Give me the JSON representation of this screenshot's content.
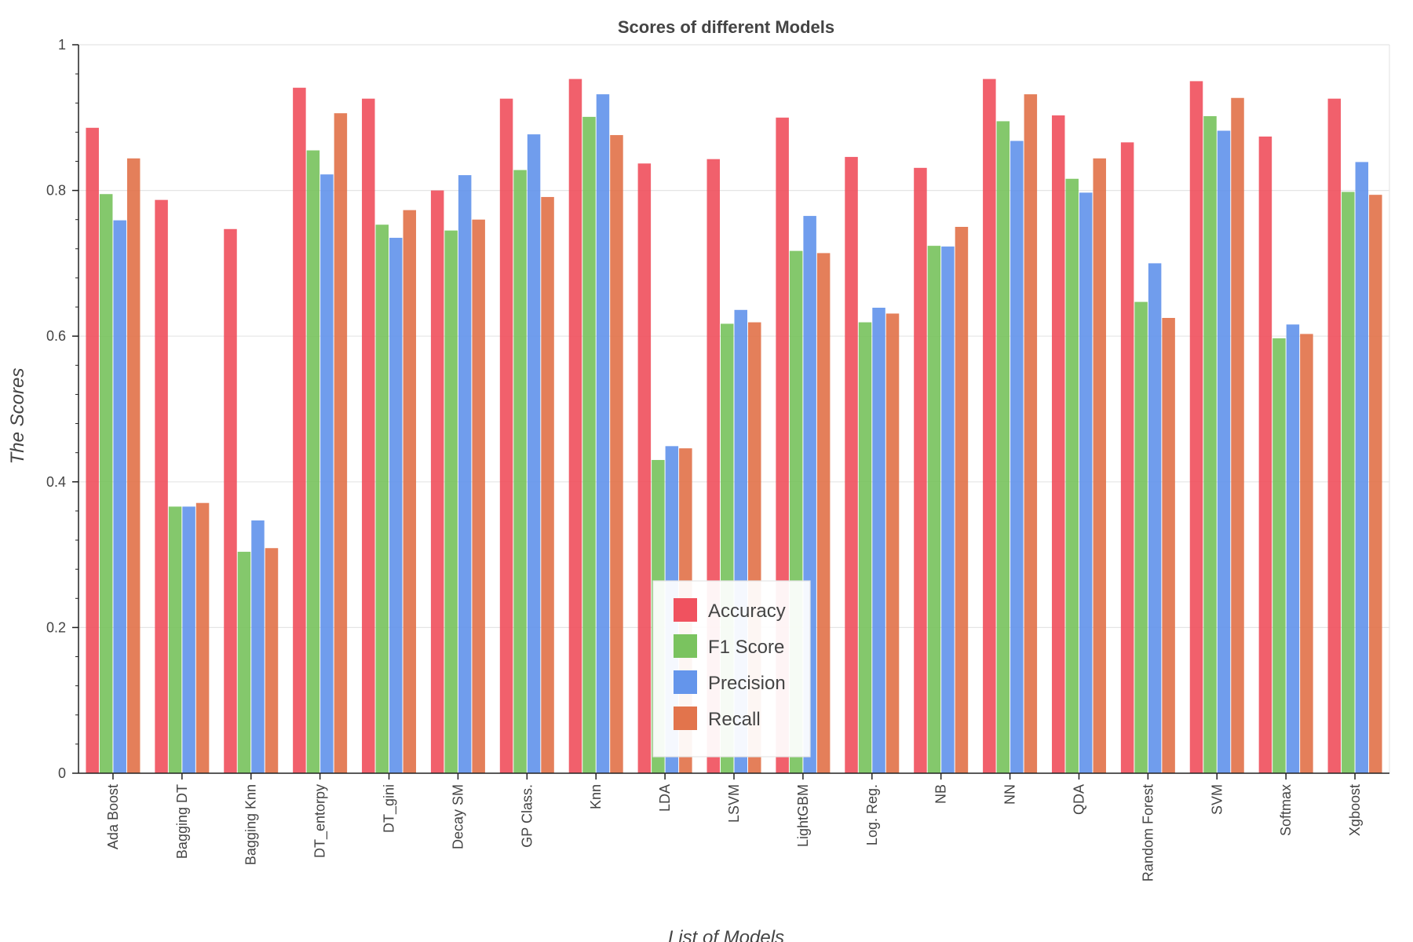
{
  "chart_data": {
    "type": "bar",
    "title": "Scores of different Models",
    "xlabel": "List of Models",
    "ylabel": "The Scores",
    "ylim": [
      0,
      1
    ],
    "yticks": [
      "0",
      "0.2",
      "0.4",
      "0.6",
      "0.8",
      "1"
    ],
    "grid": true,
    "legend_position": "center-bottom",
    "categories": [
      "Ada Boost",
      "Bagging DT",
      "Bagging Knn",
      "DT_entorpy",
      "DT_gini",
      "Decay SM",
      "GP Class.",
      "Knn",
      "LDA",
      "LSVM",
      "LightGBM",
      "Log. Reg.",
      "NB",
      "NN",
      "QDA",
      "Random Forest",
      "SVM",
      "Softmax",
      "Xgboost"
    ],
    "series": [
      {
        "name": "Accuracy",
        "color": "#f0525f",
        "values": [
          0.886,
          0.787,
          0.747,
          0.941,
          0.926,
          0.8,
          0.926,
          0.953,
          0.837,
          0.843,
          0.9,
          0.846,
          0.831,
          0.953,
          0.903,
          0.866,
          0.95,
          0.874,
          0.926
        ]
      },
      {
        "name": "F1 Score",
        "color": "#7ac35f",
        "values": [
          0.795,
          0.366,
          0.304,
          0.855,
          0.753,
          0.745,
          0.828,
          0.901,
          0.43,
          0.617,
          0.717,
          0.619,
          0.724,
          0.895,
          0.816,
          0.647,
          0.902,
          0.597,
          0.798
        ]
      },
      {
        "name": "Precision",
        "color": "#6495eb",
        "values": [
          0.759,
          0.366,
          0.347,
          0.822,
          0.735,
          0.821,
          0.877,
          0.932,
          0.449,
          0.636,
          0.765,
          0.639,
          0.723,
          0.868,
          0.797,
          0.7,
          0.882,
          0.616,
          0.839
        ]
      },
      {
        "name": "Recall",
        "color": "#e2744c",
        "values": [
          0.844,
          0.371,
          0.309,
          0.906,
          0.773,
          0.76,
          0.791,
          0.876,
          0.446,
          0.619,
          0.714,
          0.631,
          0.75,
          0.932,
          0.844,
          0.625,
          0.927,
          0.603,
          0.794
        ]
      }
    ]
  }
}
